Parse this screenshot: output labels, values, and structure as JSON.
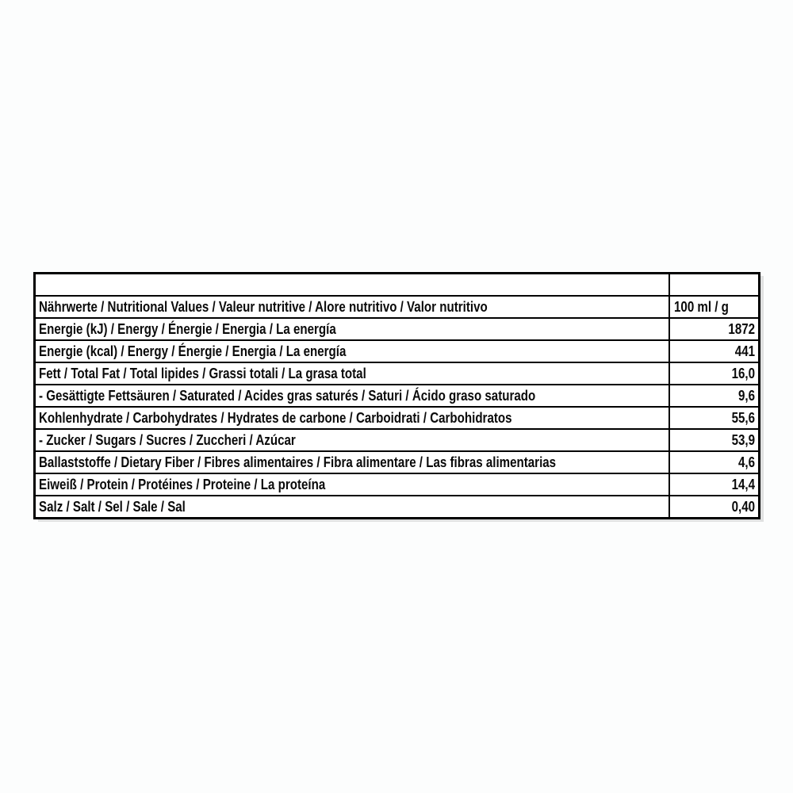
{
  "page": {
    "background_color": "#fcfdfd",
    "table_border_color": "#000000",
    "text_color": "#0a0a0a"
  },
  "table": {
    "value_column_header": "100 ml / g",
    "rows": [
      {
        "label": "",
        "value": ""
      },
      {
        "label": "Nährwerte / Nutritional Values / Valeur nutritive / Alore nutritivo / Valor nutritivo",
        "value": "100 ml / g"
      },
      {
        "label": "Energie (kJ) / Energy / Énergie / Energia / La energía",
        "value": "1872"
      },
      {
        "label": "Energie (kcal) / Energy / Énergie / Energia / La energía",
        "value": "441"
      },
      {
        "label": "Fett / Total Fat / Total lipides / Grassi totali / La grasa total",
        "value": "16,0"
      },
      {
        "label": "- Gesättigte Fettsäuren / Saturated / Acides gras saturés / Saturi / Ácido graso saturado",
        "value": "9,6"
      },
      {
        "label": "Kohlenhydrate / Carbohydrates / Hydrates de carbone / Carboidrati / Carbohidratos",
        "value": "55,6"
      },
      {
        "label": "- Zucker / Sugars / Sucres / Zuccheri / Azúcar",
        "value": "53,9"
      },
      {
        "label": "Ballaststoffe / Dietary Fiber / Fibres alimentaires / Fibra alimentare / Las fibras alimentarias",
        "value": "4,6"
      },
      {
        "label": "Eiweiß / Protein / Protéines / Proteine / La proteína",
        "value": "14,4"
      },
      {
        "label": "Salz / Salt / Sel / Sale / Sal",
        "value": "0,40"
      }
    ]
  }
}
